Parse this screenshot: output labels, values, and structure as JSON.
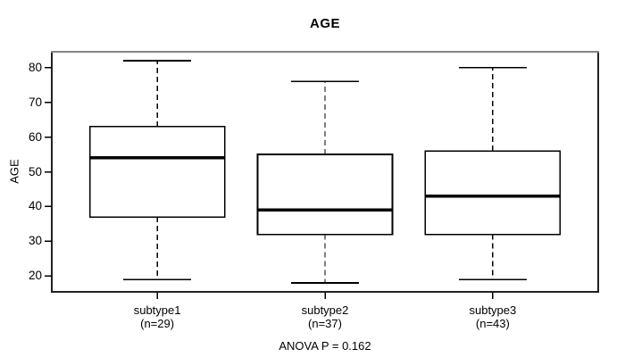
{
  "chart_data": {
    "type": "boxplot",
    "title": "AGE",
    "ylabel": "AGE",
    "xlabel": "",
    "footnote": "ANOVA P = 0.162",
    "ylim": [
      15.44,
      84.56
    ],
    "yticks": [
      20,
      30,
      40,
      50,
      60,
      70,
      80
    ],
    "grid": false,
    "legend": null,
    "colors": {
      "background": "#ffffff",
      "frame": "#222222",
      "frame_top": "#848484",
      "box_stroke": "#000000",
      "box_fill": "#ffffff",
      "median": "#000000",
      "whisker": "#000000",
      "text": "#000000"
    },
    "groups": [
      {
        "label": "subtype1",
        "sublabel": "(n=29)",
        "whisker_low": 19,
        "q1": 37,
        "median": 54,
        "q3": 63,
        "whisker_high": 82
      },
      {
        "label": "subtype2",
        "sublabel": "(n=37)",
        "whisker_low": 18,
        "q1": 32,
        "median": 39,
        "q3": 55,
        "whisker_high": 76
      },
      {
        "label": "subtype3",
        "sublabel": "(n=43)",
        "whisker_low": 19,
        "q1": 32,
        "median": 43,
        "q3": 56,
        "whisker_high": 80
      }
    ]
  }
}
